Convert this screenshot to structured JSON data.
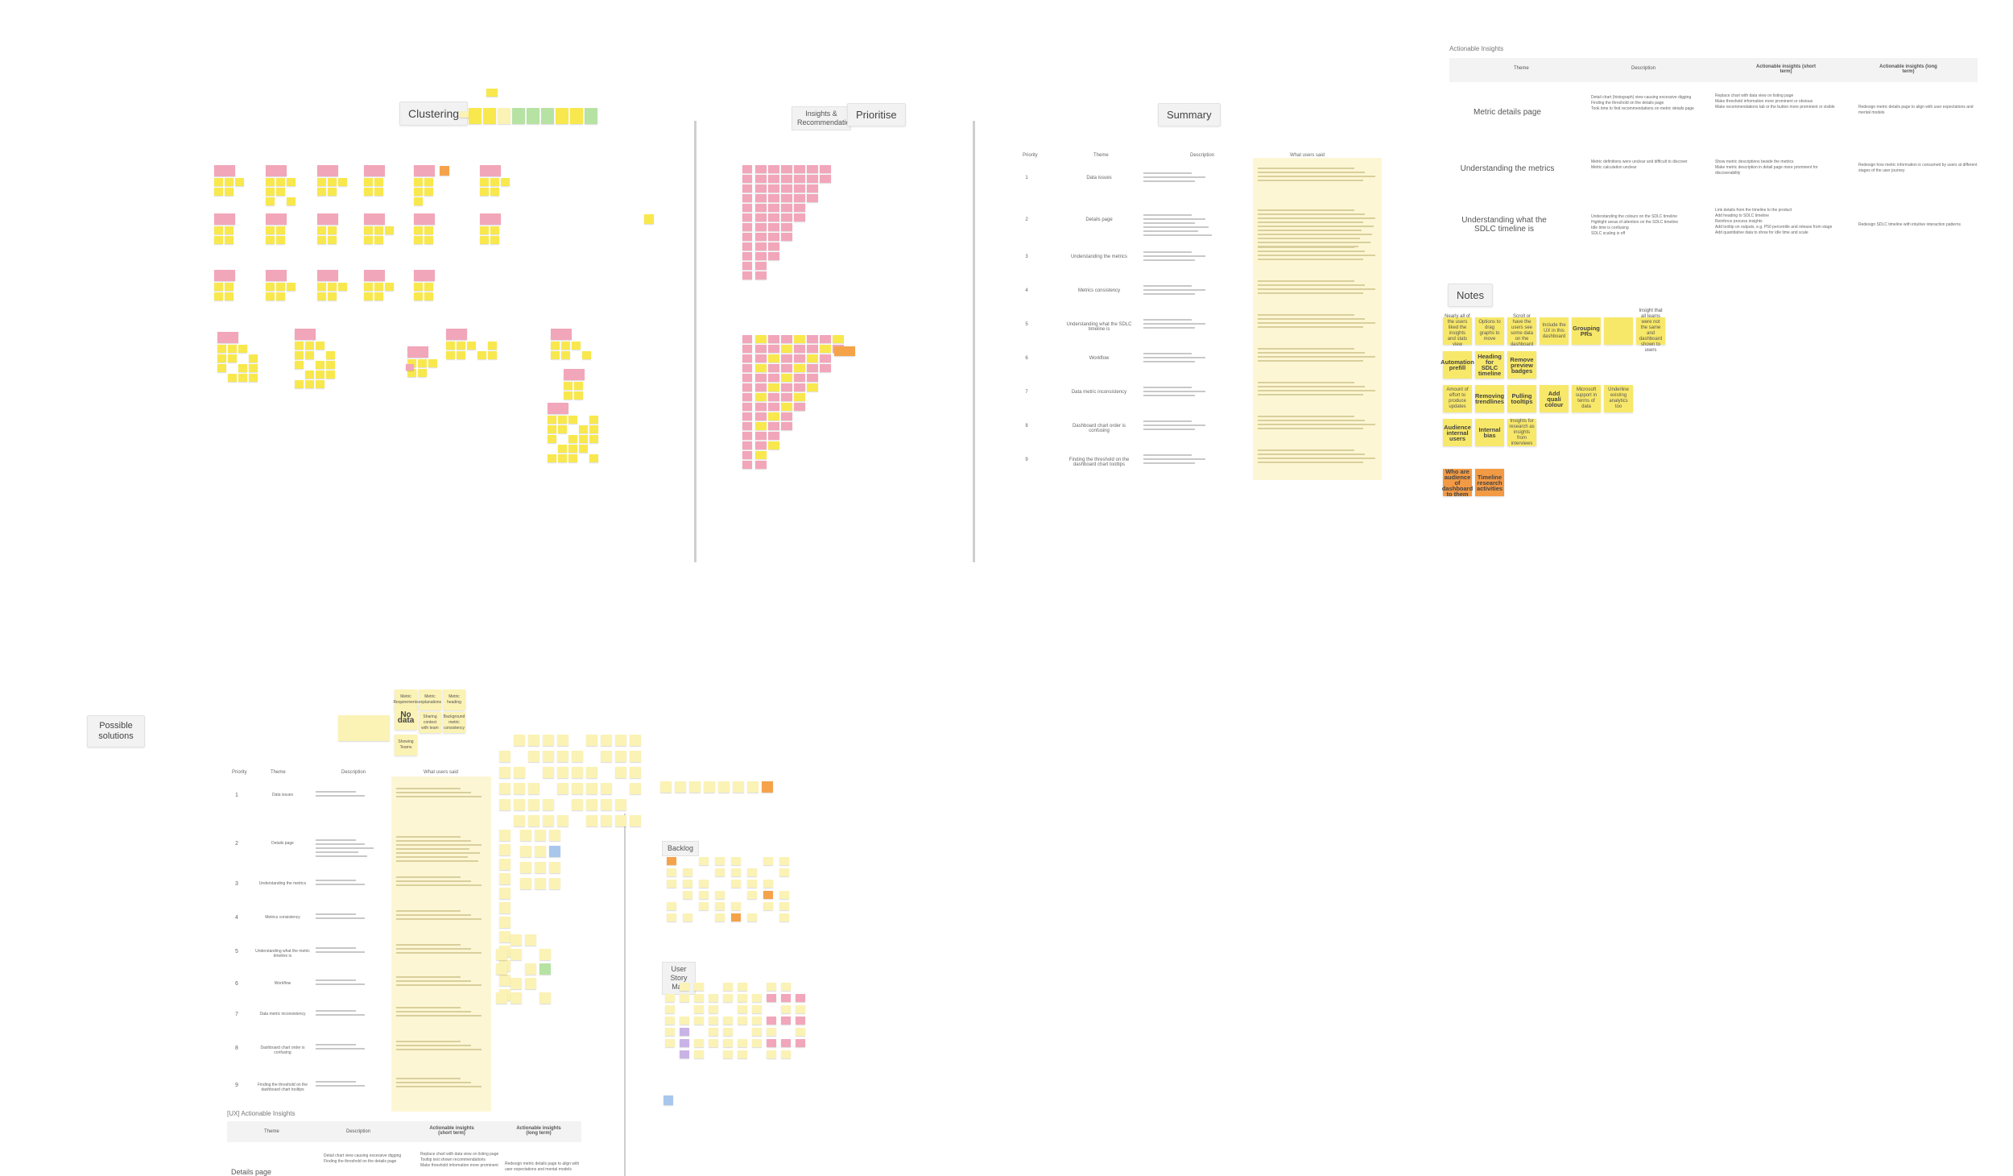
{
  "frames": {
    "clustering": "Clustering",
    "insights": "Insights & Recommendations",
    "prioritise": "Prioritise",
    "summary": "Summary",
    "notes": "Notes",
    "possible_solutions": "Possible solutions",
    "backlog": "Backlog",
    "user_story_map": "User Story Map"
  },
  "actionable": {
    "title": "Actionable Insights",
    "headers": [
      "Theme",
      "Description",
      "Actionable insights (short term)",
      "Actionable insights (long term)"
    ],
    "rows": [
      {
        "theme": "Metric details page",
        "desc": [
          "Detail chart (histograph) view causing excessive digging",
          "Finding the threshold on the details page",
          "Took time to find recommendations on metric details page"
        ],
        "short": [
          "Replace chart with data view on listing page",
          "Make threshold information more prominent or obvious",
          "Make recommendations tab or the button more prominent or visible"
        ],
        "long": [
          "Redesign metric details page to align with user expectations and mental models"
        ]
      },
      {
        "theme": "Understanding the metrics",
        "desc": [
          "Metric definitions were unclear and difficult to discover",
          "Metric calculation unclear"
        ],
        "short": [
          "Show metric descriptions beside the metrics",
          "Make metric description in detail page more prominent for discoverability"
        ],
        "long": [
          "Redesign how metric information is consumed by users at different stages of the user journey"
        ]
      },
      {
        "theme": "Understanding what the SDLC timeline is",
        "desc": [
          "Understanding the colours on the SDLC timeline",
          "Highlight areas of attention on the SDLC timeline",
          "Idle time is confusing",
          "SDLC scaling is off"
        ],
        "short": [
          "Link details from the timeline to the product",
          "Add heading to SDLC timeline",
          "Reinforce process insights",
          "Add tooltip on outputs, e.g. P50 percentile and release from stage",
          "Add quantitative data to show for idle time and scale"
        ],
        "long": [
          "Redesign SDLC timeline with intuitive interaction patterns"
        ]
      }
    ]
  },
  "summary_table": {
    "headers": [
      "Priority",
      "Theme",
      "Description",
      "What users said"
    ],
    "rows": [
      {
        "n": "1",
        "theme": "Data issues"
      },
      {
        "n": "2",
        "theme": "Details page"
      },
      {
        "n": "3",
        "theme": "Understanding the metrics"
      },
      {
        "n": "4",
        "theme": "Metrics consistency"
      },
      {
        "n": "5",
        "theme": "Understanding what the SDLC timeline is"
      },
      {
        "n": "6",
        "theme": "Workflow"
      },
      {
        "n": "7",
        "theme": "Data metric inconsistency"
      },
      {
        "n": "8",
        "theme": "Dashboard chart order is confusing"
      },
      {
        "n": "9",
        "theme": "Finding the threshold on the dashboard chart tooltips"
      }
    ]
  },
  "notes_board": [
    [
      "Nearly all of the users liked the insights and stats view",
      "Options to drag graphs to move",
      "Scroll or have the users see some data on the dashboard",
      "Include the UX in this dashboard",
      "Grouping PRs",
      "",
      "Insight that all teams were not the same and dashboard shown to users"
    ],
    [
      "Automation prefill",
      "Heading for SDLC timeline",
      "Remove preview badges",
      "",
      "",
      "",
      ""
    ],
    [
      "Amount of effort to produce updates",
      "Removing trendlines",
      "Pulling tooltips",
      "Add quali colour",
      "Microsoft support in terms of data",
      "Underline existing analytics too",
      ""
    ],
    [
      "Audience internal users",
      "Internal bias",
      "Insights for research as insights from interviews",
      "",
      "",
      "",
      ""
    ]
  ],
  "notes_orange": [
    "Who are audience of dashboard to them",
    "Timeline research activities"
  ],
  "bottom_table": {
    "headers": [
      "Priority",
      "Theme",
      "Description",
      "What users said"
    ],
    "rows": [
      {
        "n": "1",
        "theme": "Data issues"
      },
      {
        "n": "2",
        "theme": "Details page"
      },
      {
        "n": "3",
        "theme": "Understanding the metrics"
      },
      {
        "n": "4",
        "theme": "Metrics consistency"
      },
      {
        "n": "5",
        "theme": "Understanding what the metric timeline is"
      },
      {
        "n": "6",
        "theme": "Workflow"
      },
      {
        "n": "7",
        "theme": "Data metric inconsistency"
      },
      {
        "n": "8",
        "theme": "Dashboard chart order is confusing"
      },
      {
        "n": "9",
        "theme": "Finding the threshold on the dashboard chart tooltips"
      }
    ]
  },
  "bottom_actionable": {
    "title": "[UX] Actionable Insights",
    "headers": [
      "Theme",
      "Description",
      "Actionable insights (short term)",
      "Actionable insights (long term)"
    ],
    "row_theme": "Details page",
    "row_desc": [
      "Detail chart view causing excessive digging",
      "Finding the threshold on the details page"
    ],
    "row_short": [
      "Replace chart with data view on listing page",
      "Tooltip text shown recommendations",
      "Make threshold information more prominent"
    ],
    "row_long": [
      "Redesign metric details page to align with user expectations and mental models"
    ]
  },
  "solution_notes": {
    "top": [
      "Metric Requirements",
      "No data",
      "Showing Teams",
      "Metric explanations",
      "Sharing context with team",
      "Metric heading",
      "Background metric consistency"
    ]
  }
}
